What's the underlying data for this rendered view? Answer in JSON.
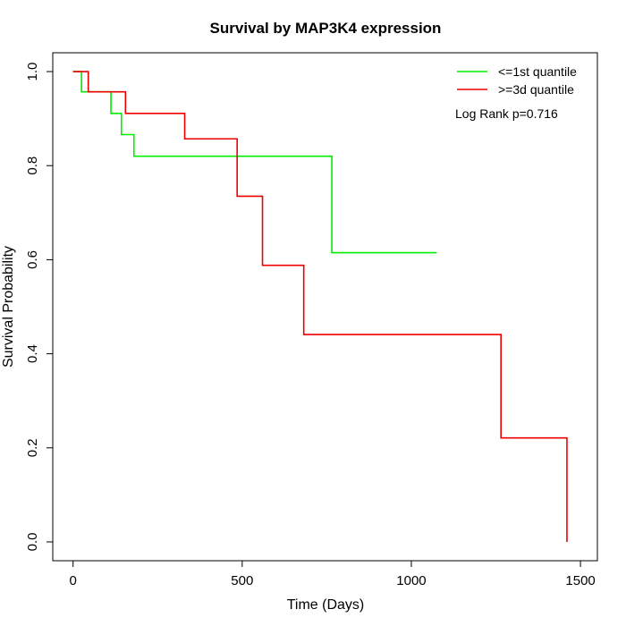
{
  "chart_data": {
    "type": "line",
    "step": true,
    "title": "Survival by MAP3K4 expression",
    "xlabel": "Time (Days)",
    "ylabel": "Survival Probability",
    "xlim": [
      -60,
      1550
    ],
    "ylim": [
      -0.04,
      1.04
    ],
    "xticks": [
      0,
      500,
      1000,
      1500
    ],
    "yticks": [
      0.0,
      0.2,
      0.4,
      0.6,
      0.8,
      1.0
    ],
    "xtick_labels": [
      "0",
      "500",
      "1000",
      "1500"
    ],
    "ytick_labels": [
      "0.0",
      "0.2",
      "0.4",
      "0.6",
      "0.8",
      "1.0"
    ],
    "legend_position": "top-right",
    "annotation": "Log Rank p=0.716",
    "series": [
      {
        "name": "<=1st quantile",
        "color": "#00ee00",
        "x": [
          0,
          25,
          112,
          143,
          180,
          765,
          1075
        ],
        "y": [
          1.0,
          0.957,
          0.911,
          0.866,
          0.82,
          0.615,
          0.615
        ]
      },
      {
        "name": ">=3d quantile",
        "color": "#ee0000",
        "x": [
          0,
          45,
          155,
          330,
          485,
          560,
          682,
          1265,
          1460,
          1460
        ],
        "y": [
          1.0,
          0.957,
          0.911,
          0.857,
          0.735,
          0.588,
          0.441,
          0.221,
          0.221,
          0.0
        ]
      }
    ]
  }
}
